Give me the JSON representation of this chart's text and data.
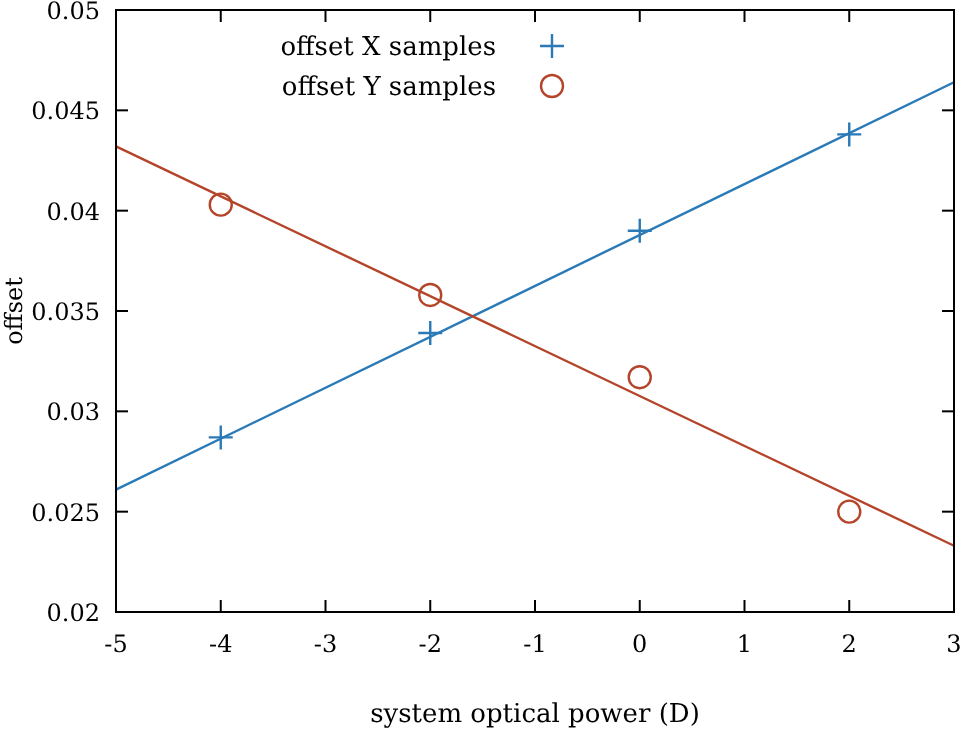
{
  "chart_data": {
    "type": "scatter",
    "xlabel": "system optical power (D)",
    "ylabel": "offset",
    "xlim": [
      -5,
      3
    ],
    "ylim": [
      0.02,
      0.05
    ],
    "xticks": [
      -5,
      -4,
      -3,
      -2,
      -1,
      0,
      1,
      2,
      3
    ],
    "yticks": [
      0.02,
      0.025,
      0.03,
      0.035,
      0.04,
      0.045,
      0.05
    ],
    "grid": false,
    "legend": "top left",
    "series": [
      {
        "name": "offset X samples",
        "marker": "cross",
        "color": "#2a7ab8",
        "x": [
          -4,
          -2,
          0,
          2
        ],
        "values": [
          0.0287,
          0.0339,
          0.039,
          0.0438
        ]
      },
      {
        "name": "offset Y samples",
        "marker": "circle",
        "color": "#b5452a",
        "x": [
          -4,
          -2,
          0,
          2
        ],
        "values": [
          0.0403,
          0.0358,
          0.0317,
          0.025
        ]
      },
      {
        "type": "line",
        "color": "#2a7ab8",
        "x": [
          -5,
          3
        ],
        "values": [
          0.0261,
          0.0464
        ]
      },
      {
        "type": "line",
        "color": "#b5452a",
        "x": [
          -5,
          3
        ],
        "values": [
          0.0432,
          0.0233
        ]
      }
    ]
  }
}
